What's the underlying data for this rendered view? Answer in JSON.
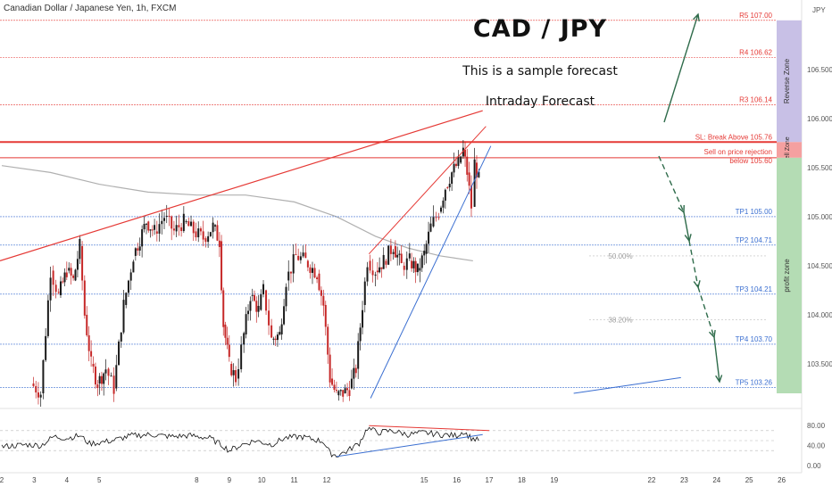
{
  "header": {
    "symbol": "Canadian Dollar / Japanese Yen, 1h, FXCM",
    "title": "CAD / JPY",
    "subtitle": "This is a sample forecast",
    "subtitle2": "Intraday Forecast",
    "currency": "JPY"
  },
  "colors": {
    "resistance": "#e53935",
    "target": "#3b6fd1",
    "neutral": "#9e9e9e",
    "arrow": "#2e6b4a",
    "reverse_zone": "#c8c0e6",
    "sell_zone": "#f5a0a0",
    "profit_zone": "#b4dcb4",
    "candle_up": "#1a1a1a",
    "candle_down": "#c62828"
  },
  "zones": [
    {
      "name": "Reverse Zone",
      "from": 105.76,
      "to": 107.0
    },
    {
      "name": "Sell Zone",
      "from": 105.6,
      "to": 105.76
    },
    {
      "name": "profit zone",
      "from": 103.2,
      "to": 105.6
    }
  ],
  "levels": [
    {
      "label": "R5 107.00",
      "price": 107.0,
      "kind": "resistance"
    },
    {
      "label": "R4 106.62",
      "price": 106.62,
      "kind": "resistance"
    },
    {
      "label": "R3 106.14",
      "price": 106.14,
      "kind": "resistance"
    },
    {
      "label": "SL: Break Above 105.76",
      "price": 105.76,
      "kind": "stop"
    },
    {
      "label": "Sell on price rejection",
      "label2": "below 105.60",
      "price": 105.6,
      "kind": "entry"
    },
    {
      "label": "TP1 105.00",
      "price": 105.0,
      "kind": "target"
    },
    {
      "label": "TP2 104.71",
      "price": 104.71,
      "kind": "target"
    },
    {
      "label": "TP3 104.21",
      "price": 104.21,
      "kind": "target"
    },
    {
      "label": "TP4 103.70",
      "price": 103.7,
      "kind": "target"
    },
    {
      "label": "TP5 103.26",
      "price": 103.26,
      "kind": "target"
    }
  ],
  "fib_labels": [
    {
      "label": "50.00%",
      "price": 104.6
    },
    {
      "label": "38.20%",
      "price": 103.95
    }
  ],
  "chart_data": {
    "type": "candlestick",
    "xlabel": "",
    "ylabel": "",
    "ylim": [
      103.1,
      107.08
    ],
    "y_ticks": [
      106.5,
      106.0,
      105.5,
      105.0,
      104.5,
      104.0,
      103.5
    ],
    "y_tick_labels": [
      "106.500",
      "106.000",
      "105.500",
      "105.000",
      "104.500",
      "104.000",
      "103.500"
    ],
    "x_ticks": [
      {
        "label": "2",
        "day": 2
      },
      {
        "label": "3",
        "day": 3
      },
      {
        "label": "4",
        "day": 4
      },
      {
        "label": "5",
        "day": 5
      },
      {
        "label": "8",
        "day": 8
      },
      {
        "label": "9",
        "day": 9
      },
      {
        "label": "10",
        "day": 10
      },
      {
        "label": "11",
        "day": 11
      },
      {
        "label": "12",
        "day": 12
      },
      {
        "label": "15",
        "day": 15
      },
      {
        "label": "16",
        "day": 16
      },
      {
        "label": "17",
        "day": 17
      },
      {
        "label": "18",
        "day": 18
      },
      {
        "label": "19",
        "day": 19
      },
      {
        "label": "22",
        "day": 22
      },
      {
        "label": "23",
        "day": 23
      },
      {
        "label": "24",
        "day": 24
      },
      {
        "label": "25",
        "day": 25
      },
      {
        "label": "26",
        "day": 26
      }
    ],
    "price_path": [
      {
        "day": 2.9,
        "price": 103.3
      },
      {
        "day": 3.2,
        "price": 103.2
      },
      {
        "day": 3.5,
        "price": 104.45
      },
      {
        "day": 3.75,
        "price": 104.2
      },
      {
        "day": 4.0,
        "price": 104.45
      },
      {
        "day": 4.2,
        "price": 104.35
      },
      {
        "day": 4.4,
        "price": 104.7
      },
      {
        "day": 4.55,
        "price": 104.0
      },
      {
        "day": 4.75,
        "price": 103.5
      },
      {
        "day": 4.95,
        "price": 103.3
      },
      {
        "day": 5.2,
        "price": 103.45
      },
      {
        "day": 5.45,
        "price": 103.25
      },
      {
        "day": 5.75,
        "price": 104.1
      },
      {
        "day": 6.05,
        "price": 104.6
      },
      {
        "day": 6.45,
        "price": 104.95
      },
      {
        "day": 6.7,
        "price": 104.85
      },
      {
        "day": 7.0,
        "price": 105.0
      },
      {
        "day": 7.3,
        "price": 104.85
      },
      {
        "day": 7.6,
        "price": 104.95
      },
      {
        "day": 7.9,
        "price": 104.85
      },
      {
        "day": 8.2,
        "price": 104.78
      },
      {
        "day": 8.5,
        "price": 104.9
      },
      {
        "day": 8.7,
        "price": 104.75
      },
      {
        "day": 8.82,
        "price": 103.9
      },
      {
        "day": 9.0,
        "price": 103.5
      },
      {
        "day": 9.2,
        "price": 103.35
      },
      {
        "day": 9.45,
        "price": 103.8
      },
      {
        "day": 9.65,
        "price": 104.2
      },
      {
        "day": 9.9,
        "price": 104.05
      },
      {
        "day": 10.05,
        "price": 104.25
      },
      {
        "day": 10.3,
        "price": 103.75
      },
      {
        "day": 10.55,
        "price": 103.8
      },
      {
        "day": 10.75,
        "price": 104.35
      },
      {
        "day": 11.05,
        "price": 104.6
      },
      {
        "day": 11.35,
        "price": 104.55
      },
      {
        "day": 11.7,
        "price": 104.42
      },
      {
        "day": 11.9,
        "price": 104.1
      },
      {
        "day": 12.1,
        "price": 103.35
      },
      {
        "day": 12.3,
        "price": 103.18
      },
      {
        "day": 12.5,
        "price": 103.2
      },
      {
        "day": 12.7,
        "price": 103.25
      },
      {
        "day": 12.9,
        "price": 103.45
      },
      {
        "day": 13.1,
        "price": 104.1
      },
      {
        "day": 13.25,
        "price": 104.55
      },
      {
        "day": 13.5,
        "price": 104.45
      },
      {
        "day": 13.75,
        "price": 104.55
      },
      {
        "day": 14.05,
        "price": 104.7
      },
      {
        "day": 14.3,
        "price": 104.5
      },
      {
        "day": 14.55,
        "price": 104.55
      },
      {
        "day": 14.8,
        "price": 104.45
      },
      {
        "day": 15.0,
        "price": 104.62
      },
      {
        "day": 15.2,
        "price": 104.9
      },
      {
        "day": 15.45,
        "price": 105.05
      },
      {
        "day": 15.65,
        "price": 105.3
      },
      {
        "day": 15.85,
        "price": 105.45
      },
      {
        "day": 16.05,
        "price": 105.55
      },
      {
        "day": 16.2,
        "price": 105.68
      },
      {
        "day": 16.32,
        "price": 105.45
      },
      {
        "day": 16.45,
        "price": 105.1
      },
      {
        "day": 16.55,
        "price": 105.55
      },
      {
        "day": 16.68,
        "price": 105.38
      }
    ],
    "rsi": {
      "ylim": [
        0,
        100
      ],
      "ticks": [
        80,
        40,
        0
      ],
      "tick_labels": [
        "80.00",
        "40.00",
        "0.00"
      ],
      "values": [
        {
          "day": 2.0,
          "value": 38
        },
        {
          "day": 2.8,
          "value": 42
        },
        {
          "day": 3.2,
          "value": 40
        },
        {
          "day": 3.6,
          "value": 58
        },
        {
          "day": 4.0,
          "value": 55
        },
        {
          "day": 4.4,
          "value": 60
        },
        {
          "day": 4.7,
          "value": 44
        },
        {
          "day": 5.0,
          "value": 46
        },
        {
          "day": 5.4,
          "value": 50
        },
        {
          "day": 6.0,
          "value": 60
        },
        {
          "day": 6.6,
          "value": 62
        },
        {
          "day": 7.2,
          "value": 58
        },
        {
          "day": 7.8,
          "value": 60
        },
        {
          "day": 8.4,
          "value": 55
        },
        {
          "day": 8.8,
          "value": 40
        },
        {
          "day": 9.0,
          "value": 30
        },
        {
          "day": 9.4,
          "value": 42
        },
        {
          "day": 9.8,
          "value": 50
        },
        {
          "day": 10.3,
          "value": 42
        },
        {
          "day": 10.7,
          "value": 55
        },
        {
          "day": 11.2,
          "value": 58
        },
        {
          "day": 11.9,
          "value": 48
        },
        {
          "day": 12.1,
          "value": 25
        },
        {
          "day": 12.3,
          "value": 20
        },
        {
          "day": 12.6,
          "value": 28
        },
        {
          "day": 13.0,
          "value": 45
        },
        {
          "day": 13.25,
          "value": 75
        },
        {
          "day": 13.6,
          "value": 66
        },
        {
          "day": 14.0,
          "value": 70
        },
        {
          "day": 14.5,
          "value": 62
        },
        {
          "day": 15.0,
          "value": 66
        },
        {
          "day": 15.5,
          "value": 62
        },
        {
          "day": 16.0,
          "value": 60
        },
        {
          "day": 16.2,
          "value": 68
        },
        {
          "day": 16.45,
          "value": 55
        },
        {
          "day": 16.68,
          "value": 50
        }
      ]
    }
  }
}
